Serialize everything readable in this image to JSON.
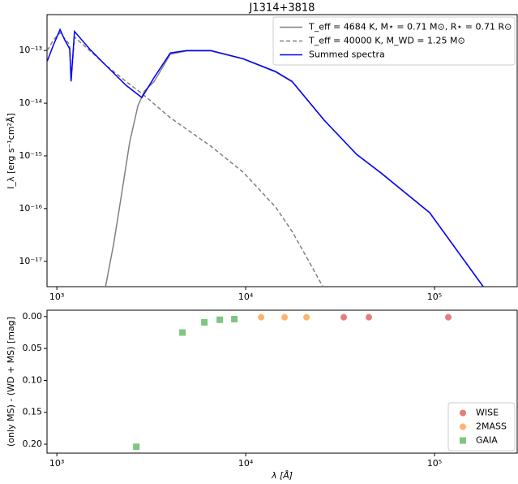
{
  "chart_data": [
    {
      "type": "line",
      "title": "J1314+3818",
      "ylabel": "I_λ [erg s⁻¹cm²Å]",
      "xscale": "log",
      "yscale": "log",
      "legend": "upper right",
      "xlim": [
        887,
        274000
      ],
      "ylim": [
        3.3e-18,
        4.8e-13
      ],
      "xticks": [
        {
          "value": 1000,
          "label": "10³"
        },
        {
          "value": 10000,
          "label": "10⁴"
        },
        {
          "value": 100000,
          "label": "10⁵"
        }
      ],
      "yticks": [
        {
          "value": 1e-17,
          "label": "10⁻¹⁷"
        },
        {
          "value": 1e-16,
          "label": "10⁻¹⁶"
        },
        {
          "value": 1e-15,
          "label": "10⁻¹⁵"
        },
        {
          "value": 1e-14,
          "label": "10⁻¹⁴"
        },
        {
          "value": 1e-13,
          "label": "10⁻¹³"
        }
      ],
      "series": [
        {
          "name": "T_eff = 4684 K, M⋆ = 0.71 M⊙, R⋆ = 0.71 R⊙",
          "color": "#808080",
          "dash": false,
          "x": [
            1810,
            2000,
            2200,
            2430,
            2690,
            2910,
            3280,
            3990,
            4860,
            6540,
            9700,
            14400,
            17600,
            26100,
            38700,
            52100,
            94200,
            181000
          ],
          "values": [
            3.3e-18,
            2.18e-17,
            1.83e-16,
            1.83e-15,
            9e-15,
            1.7e-14,
            2.6e-14,
            8.5e-14,
            9.8e-14,
            9.8e-14,
            6.9e-14,
            3.9e-14,
            2.55e-14,
            4.7e-15,
            1.06e-15,
            4.7e-16,
            8.3e-17,
            3.3e-18
          ]
        },
        {
          "name": "T_eff = 40000 K, M_WD = 1.25 M⊙",
          "color": "#808080",
          "dash": true,
          "x": [
            890,
            960,
            1040,
            1170,
            1190,
            1240,
            1490,
            1810,
            2320,
            2820,
            3990,
            6540,
            9700,
            14400,
            17600,
            21400,
            25600
          ],
          "values": [
            1e-13,
            1.6e-13,
            2.18e-13,
            1.28e-13,
            2.6e-14,
            1.8e-13,
            1e-13,
            5.3e-14,
            2.6e-14,
            1.53e-14,
            5.3e-15,
            1.53e-15,
            4.9e-16,
            1.07e-16,
            3.7e-17,
            1.07e-17,
            3.3e-18
          ]
        },
        {
          "name": "Summed spectra",
          "color": "#0000ff",
          "dash": false,
          "x": [
            890,
            960,
            1040,
            1100,
            1170,
            1190,
            1240,
            1490,
            1810,
            2320,
            2820,
            3280,
            3990,
            4860,
            6540,
            9700,
            14400,
            17600,
            26100,
            38700,
            52100,
            94200,
            181000
          ],
          "values": [
            6.3e-14,
            1.28e-13,
            2.5e-13,
            1.6e-13,
            1.07e-13,
            2.6e-14,
            2.3e-13,
            1.07e-13,
            5.3e-14,
            2.2e-14,
            1.28e-14,
            3.1e-14,
            9e-14,
            1e-13,
            1e-13,
            7e-14,
            4e-14,
            2.6e-14,
            4.75e-15,
            1.07e-15,
            4.75e-16,
            8.4e-17,
            3.3e-18
          ]
        }
      ]
    },
    {
      "type": "scatter",
      "xlabel": "λ [Å]",
      "ylabel": "(only MS) - (WD + MS) [mag]",
      "xscale": "log",
      "invert_y": true,
      "legend": "lower right",
      "xlim": [
        887,
        274000
      ],
      "ylim": [
        -0.01,
        0.214
      ],
      "xticks": [
        {
          "value": 1000,
          "label": "10³"
        },
        {
          "value": 10000,
          "label": "10⁴"
        },
        {
          "value": 100000,
          "label": "10⁵"
        }
      ],
      "yticks": [
        {
          "value": 0,
          "label": "0.00"
        },
        {
          "value": 0.05,
          "label": "0.05"
        },
        {
          "value": 0.1,
          "label": "0.10"
        },
        {
          "value": 0.15,
          "label": "0.15"
        },
        {
          "value": 0.2,
          "label": "0.20"
        }
      ],
      "series": [
        {
          "name": "WISE",
          "color": "#d62728",
          "marker": "circle",
          "x": [
            33050,
            44900,
            118300
          ],
          "values": [
            0.001,
            0.001,
            0.001
          ]
        },
        {
          "name": "2MASS",
          "color": "#ff7f0e",
          "marker": "circle",
          "x": [
            12070,
            16070,
            20980
          ],
          "values": [
            0.001,
            0.001,
            0.001
          ]
        },
        {
          "name": "GAIA",
          "color": "#2ca02c",
          "marker": "square",
          "x": [
            2635,
            4625,
            6040,
            7290,
            8710
          ],
          "values": [
            0.204,
            0.025,
            0.009,
            0.005,
            0.004
          ]
        }
      ]
    }
  ]
}
